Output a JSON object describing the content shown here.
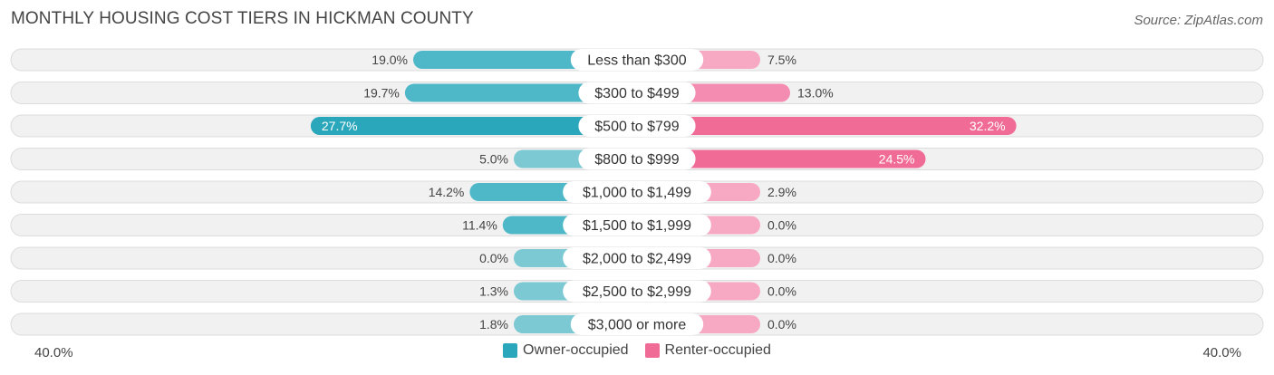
{
  "title": "MONTHLY HOUSING COST TIERS IN HICKMAN COUNTY",
  "source": "Source: ZipAtlas.com",
  "axis": {
    "left_label": "40.0%",
    "right_label": "40.0%"
  },
  "colors": {
    "owner_light": "#7cc9d4",
    "owner_strong": "#2aa7bb",
    "renter_light": "#f7a9c3",
    "renter_strong": "#f06c96",
    "row_bg": "#f1f1f1",
    "row_border": "#dcdcdc"
  },
  "chart_data": {
    "type": "bar",
    "orientation": "horizontal-diverging",
    "title": "MONTHLY HOUSING COST TIERS IN HICKMAN COUNTY",
    "xlim": [
      -40,
      40
    ],
    "legend_position": "bottom-center",
    "categories": [
      "Less than $300",
      "$300 to $499",
      "$500 to $799",
      "$800 to $999",
      "$1,000 to $1,499",
      "$1,500 to $1,999",
      "$2,000 to $2,499",
      "$2,500 to $2,999",
      "$3,000 or more"
    ],
    "series": [
      {
        "name": "Owner-occupied",
        "values": [
          19.0,
          19.7,
          27.7,
          5.0,
          14.2,
          11.4,
          0.0,
          1.3,
          1.8
        ],
        "labels": [
          "19.0%",
          "19.7%",
          "27.7%",
          "5.0%",
          "14.2%",
          "11.4%",
          "0.0%",
          "1.3%",
          "1.8%"
        ]
      },
      {
        "name": "Renter-occupied",
        "values": [
          7.5,
          13.0,
          32.2,
          24.5,
          2.9,
          0.0,
          0.0,
          0.0,
          0.0
        ],
        "labels": [
          "7.5%",
          "13.0%",
          "32.2%",
          "24.5%",
          "2.9%",
          "0.0%",
          "0.0%",
          "0.0%",
          "0.0%"
        ]
      }
    ]
  }
}
